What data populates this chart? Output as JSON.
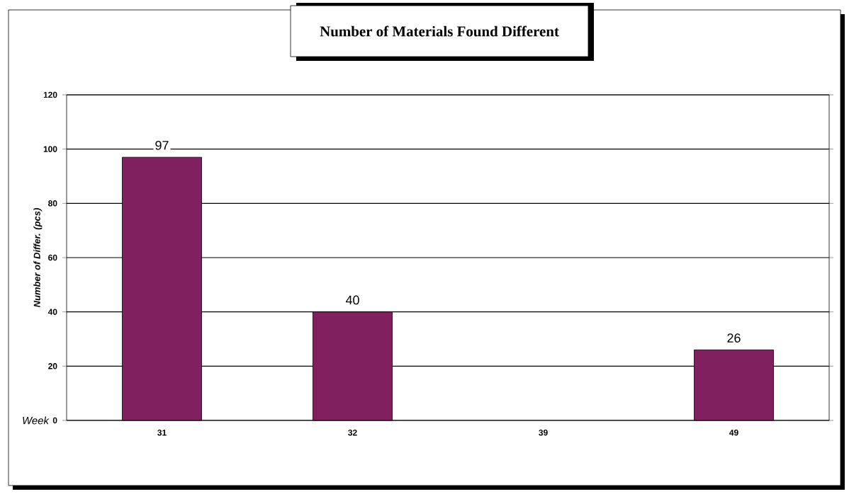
{
  "chart_data": {
    "type": "bar",
    "title": "Number of Materials Found Different",
    "xlabel": "Week",
    "ylabel": "Number of Differ. (pcs)",
    "categories": [
      "31",
      "32",
      "39",
      "49"
    ],
    "values": [
      97,
      40,
      null,
      26
    ],
    "color": "#80205e",
    "ylim": [
      0,
      120
    ],
    "yticks": [
      0,
      20,
      40,
      60,
      80,
      100,
      120
    ],
    "grid": "y",
    "data_labels": true
  }
}
